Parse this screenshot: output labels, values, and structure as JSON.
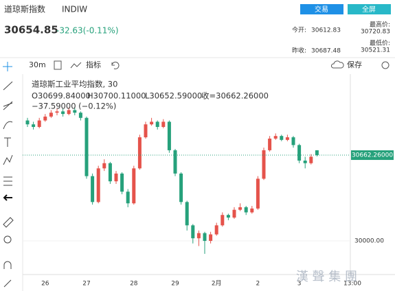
{
  "header": {
    "name": "道琼斯指数",
    "code": "INDIW",
    "price": "30654.85",
    "change": "-32.63(-0.11%)",
    "buttons": [
      "交易",
      "全屏"
    ],
    "stats": [
      [
        "今开:",
        "30612.83"
      ],
      [
        "最高价:",
        "30720.83"
      ],
      [
        "昨收:",
        "30687.48"
      ],
      [
        "最低价:",
        "30521.31"
      ]
    ]
  },
  "toolbar": {
    "interval": "30m",
    "indicator": "指标",
    "save": "保存"
  },
  "legend": {
    "title": "道琼斯工业平均指数, 30",
    "open": "O30699.84000",
    "high": "H30700.11000",
    "low": "L30652.59000",
    "close": "收=30662.26000",
    "change": "−37.59000 (−0.12%)"
  },
  "watermark": "漢 聲 集 團",
  "chart_data": {
    "type": "candlestick",
    "categories": [
      null,
      null,
      null,
      "26",
      null,
      null,
      null,
      null,
      null,
      null,
      "27",
      null,
      null,
      null,
      null,
      null,
      null,
      null,
      "28",
      null,
      null,
      null,
      null,
      null,
      null,
      "29",
      null,
      null,
      null,
      null,
      null,
      null,
      "2月",
      null,
      null,
      null,
      null,
      null,
      null,
      "2",
      null,
      null,
      null,
      null,
      null,
      null,
      "3",
      null,
      null,
      null
    ],
    "extra_x_label": "13:00",
    "open": [
      30930,
      30900,
      30880,
      30930,
      30960,
      30990,
      31000,
      30980,
      31010,
      30990,
      30950,
      30500,
      30300,
      30560,
      30600,
      30460,
      30520,
      30380,
      30290,
      30560,
      30800,
      30900,
      30920,
      30880,
      30920,
      30700,
      30520,
      30300,
      30120,
      30020,
      30060,
      30000,
      30050,
      30120,
      30200,
      30180,
      30240,
      30260,
      30220,
      30250,
      30480,
      30700,
      30790,
      30810,
      30780,
      30800,
      30740,
      30620,
      30600,
      30699.84
    ],
    "close": [
      30900,
      30880,
      30930,
      30960,
      30990,
      31000,
      30980,
      31010,
      30990,
      30950,
      30500,
      30300,
      30560,
      30600,
      30460,
      30520,
      30380,
      30290,
      30560,
      30800,
      30900,
      30920,
      30880,
      30920,
      30700,
      30520,
      30300,
      30120,
      30020,
      30060,
      30000,
      30050,
      30120,
      30200,
      30180,
      30240,
      30260,
      30220,
      30250,
      30480,
      30700,
      30790,
      30810,
      30780,
      30800,
      30740,
      30620,
      30600,
      30650,
      30662.26
    ],
    "high": [
      30950,
      30920,
      30950,
      30980,
      31010,
      31020,
      31020,
      31030,
      31030,
      31000,
      30960,
      30520,
      30580,
      30630,
      30610,
      30540,
      30530,
      30400,
      30580,
      30820,
      30920,
      30950,
      30930,
      30940,
      30930,
      30710,
      30530,
      30310,
      30130,
      30080,
      30070,
      30070,
      30140,
      30220,
      30210,
      30260,
      30290,
      30270,
      30270,
      30500,
      30720,
      30810,
      30830,
      30820,
      30820,
      30810,
      30750,
      30650,
      30670,
      30700.11
    ],
    "low": [
      30880,
      30860,
      30870,
      30920,
      30950,
      30970,
      30960,
      30970,
      30970,
      30930,
      30480,
      30280,
      30290,
      30540,
      30440,
      30440,
      30360,
      30260,
      30280,
      30550,
      30790,
      30890,
      30860,
      30870,
      30680,
      30500,
      30280,
      30080,
      29980,
      29960,
      29900,
      29980,
      30040,
      30110,
      30160,
      30170,
      30230,
      30200,
      30210,
      30240,
      30470,
      30690,
      30780,
      30770,
      30770,
      30720,
      30600,
      30560,
      30590,
      30652.59
    ],
    "up_color": "#e5534b",
    "down_color": "#26a17b",
    "ylim": [
      29740,
      31288
    ],
    "yticks": [
      {
        "value": 30000,
        "label": "30000.00"
      }
    ],
    "last_price": {
      "value": 30662.26,
      "label": "30662.26000"
    }
  }
}
